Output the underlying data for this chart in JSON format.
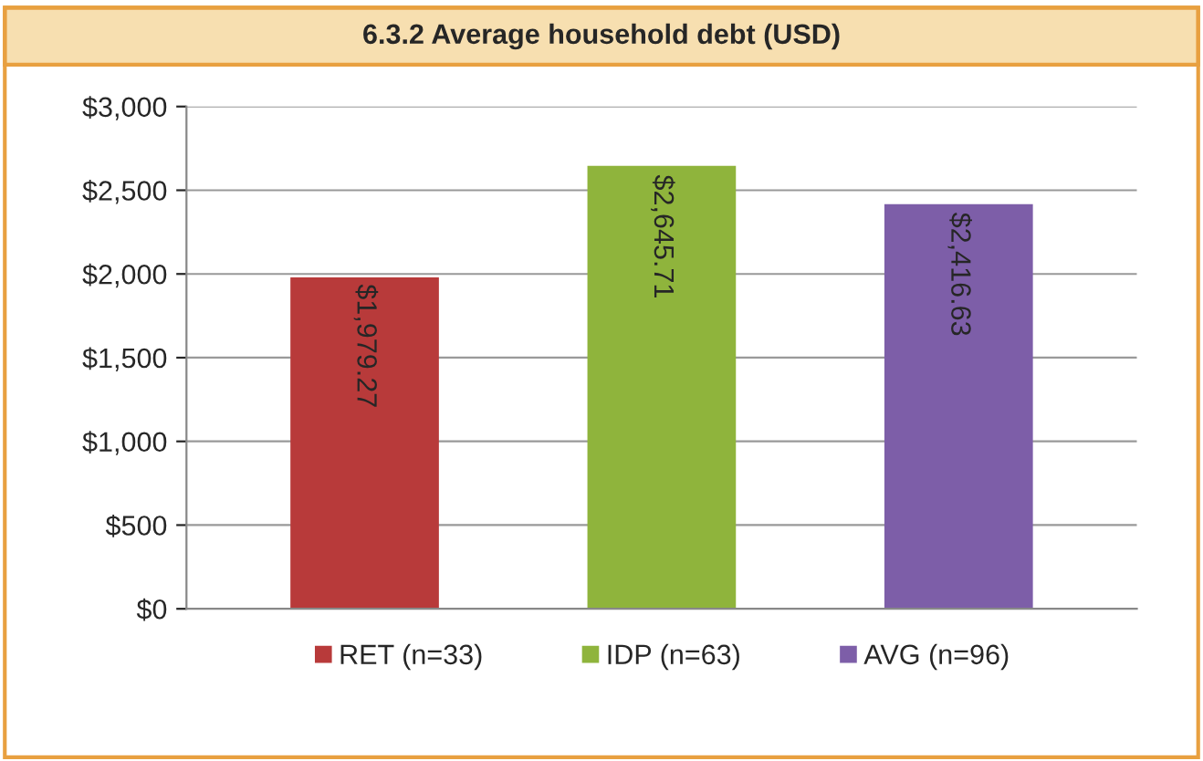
{
  "chart_data": {
    "type": "bar",
    "title": "6.3.2 Average household debt (USD)",
    "categories": [
      null
    ],
    "series": [
      {
        "name": "RET (n=33)",
        "color": "#b83a3a",
        "values": [
          1979.27
        ],
        "value_labels": [
          "$1,979.27"
        ]
      },
      {
        "name": "IDP (n=63)",
        "color": "#8fb43c",
        "values": [
          2645.71
        ],
        "value_labels": [
          "$2,645.71"
        ]
      },
      {
        "name": "AVG (n=96)",
        "color": "#7d5ea8",
        "values": [
          2416.63
        ],
        "value_labels": [
          "$2,416.63"
        ]
      }
    ],
    "ylim": [
      0,
      3000
    ],
    "yticks": [
      {
        "value": 0,
        "label": "$0"
      },
      {
        "value": 500,
        "label": "$500"
      },
      {
        "value": 1000,
        "label": "$1,000"
      },
      {
        "value": 1500,
        "label": "$1,500"
      },
      {
        "value": 2000,
        "label": "$2,000"
      },
      {
        "value": 2500,
        "label": "$2,500"
      },
      {
        "value": 3000,
        "label": "$3,000"
      }
    ],
    "grid": "y",
    "legend": "bottom"
  }
}
